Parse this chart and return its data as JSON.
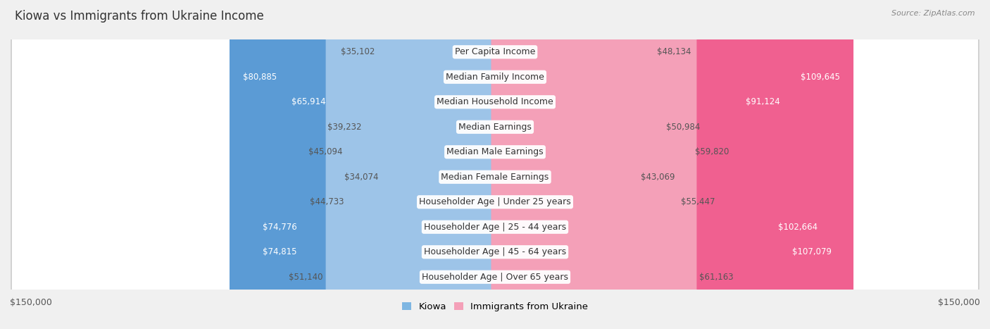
{
  "title": "Kiowa vs Immigrants from Ukraine Income",
  "source": "Source: ZipAtlas.com",
  "categories": [
    "Per Capita Income",
    "Median Family Income",
    "Median Household Income",
    "Median Earnings",
    "Median Male Earnings",
    "Median Female Earnings",
    "Householder Age | Under 25 years",
    "Householder Age | 25 - 44 years",
    "Householder Age | 45 - 64 years",
    "Householder Age | Over 65 years"
  ],
  "kiowa_values": [
    35102,
    80885,
    65914,
    39232,
    45094,
    34074,
    44733,
    74776,
    74815,
    51140
  ],
  "ukraine_values": [
    48134,
    109645,
    91124,
    50984,
    59820,
    43069,
    55447,
    102664,
    107079,
    61163
  ],
  "kiowa_colors": [
    "#AECFEC",
    "#5B9BD5",
    "#7EB6E2",
    "#AECFEC",
    "#9DC4E8",
    "#AECFEC",
    "#AECFEC",
    "#5B9BD5",
    "#5B9BD5",
    "#9DC4E8"
  ],
  "ukraine_colors": [
    "#F4A0B8",
    "#F06090",
    "#E87FA0",
    "#F4A0B8",
    "#F4A0B8",
    "#F4A0B8",
    "#F4A0B8",
    "#F06090",
    "#F06090",
    "#F4A0B8"
  ],
  "max_value": 150000,
  "bg_color": "#F0F0F0",
  "row_bg_color": "#FFFFFF",
  "label_fontsize": 9.0,
  "title_fontsize": 12,
  "value_fontsize": 8.5,
  "legend_label_kiowa": "Kiowa",
  "legend_label_ukraine": "Immigrants from Ukraine",
  "kiowa_legend_color": "#7EB6E2",
  "ukraine_legend_color": "#F4A0B8"
}
